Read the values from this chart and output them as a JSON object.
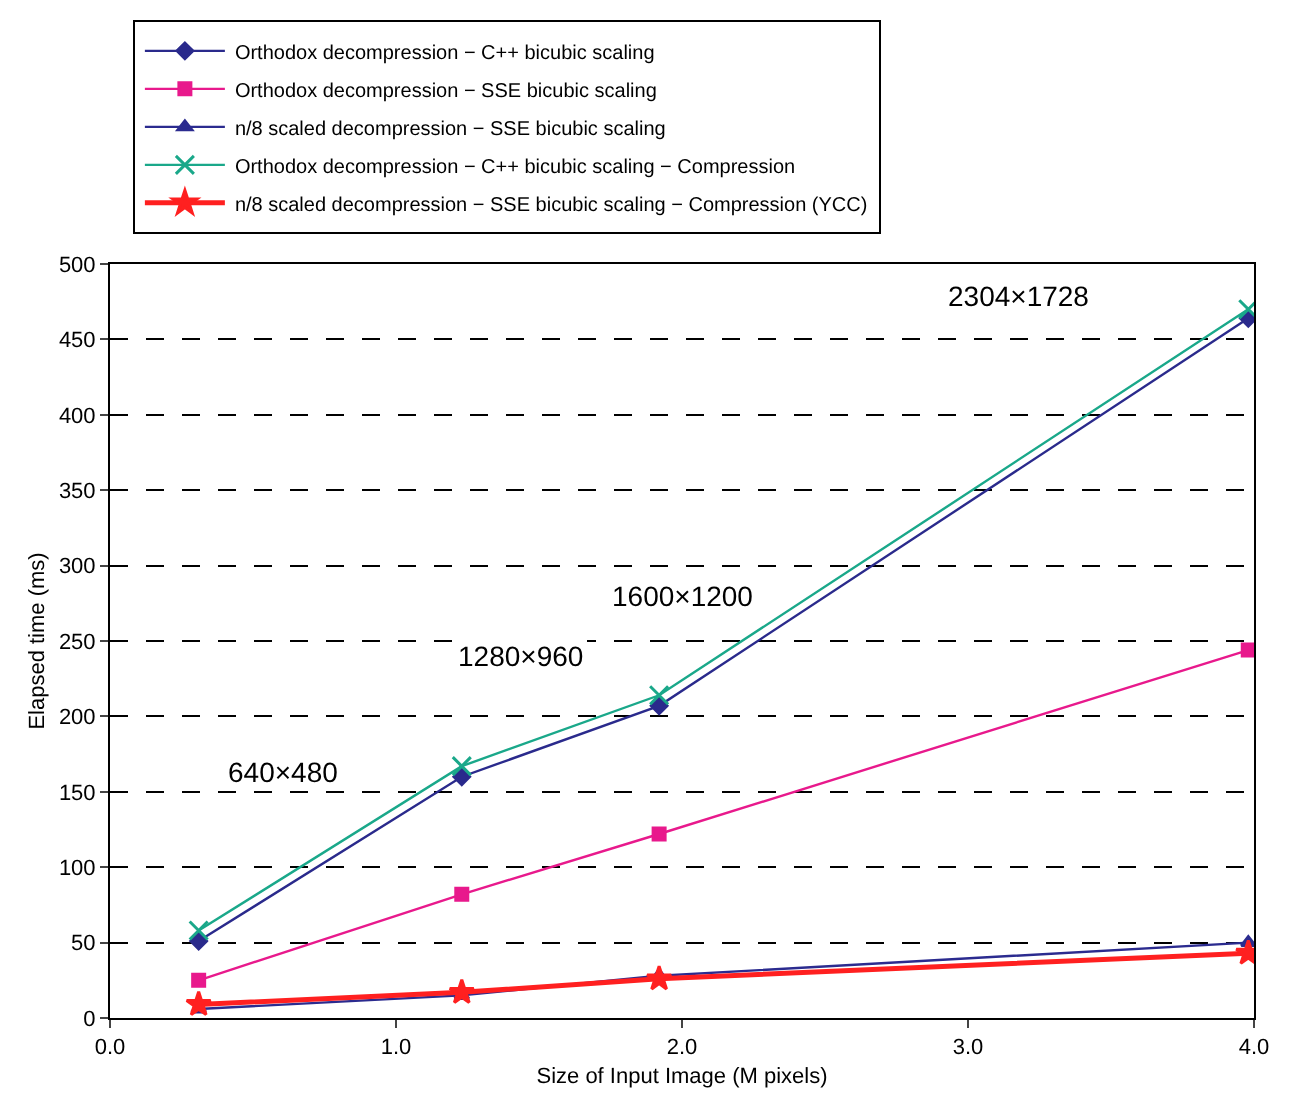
{
  "chart_data": {
    "type": "line",
    "xlabel": "Size of Input Image (M pixels)",
    "ylabel": "Elapsed time (ms)",
    "x": [
      0.31,
      1.23,
      1.92,
      3.98
    ],
    "series": [
      {
        "name": "Orthodox decompression − C++ bicubic scaling",
        "color": "#2a2a8c",
        "marker": "diamond",
        "values": [
          51,
          160,
          207,
          464
        ]
      },
      {
        "name": "Orthodox decompression − SSE bicubic scaling",
        "color": "#e8198c",
        "marker": "square",
        "values": [
          25,
          82,
          122,
          244
        ]
      },
      {
        "name": "n/8 scaled decompression − SSE bicubic scaling",
        "color": "#2b2b8f",
        "marker": "triangle",
        "values": [
          6,
          15,
          28,
          50
        ]
      },
      {
        "name": "Orthodox decompression − C++ bicubic scaling − Compression",
        "color": "#1aa88a",
        "marker": "cross",
        "values": [
          58,
          167,
          214,
          470
        ]
      },
      {
        "name": "n/8 scaled decompression − SSE bicubic scaling − Compression (YCC)",
        "color": "#ff2020",
        "marker": "star",
        "values": [
          9,
          17,
          26,
          43
        ]
      }
    ],
    "xlim": [
      0,
      4
    ],
    "xticks": [
      {
        "value": 0,
        "label": "0.0"
      },
      {
        "value": 1,
        "label": "1.0"
      },
      {
        "value": 2,
        "label": "2.0"
      },
      {
        "value": 3,
        "label": "3.0"
      },
      {
        "value": 4,
        "label": "4.0"
      }
    ],
    "ylim": [
      0,
      500
    ],
    "yticks": [
      0,
      50,
      100,
      150,
      200,
      250,
      300,
      350,
      400,
      450,
      500
    ],
    "grid": "y",
    "legend": "top",
    "line_style": "solid",
    "annotations": [
      "640×480",
      "1280×960",
      "1600×1200",
      "2304×1728"
    ]
  }
}
